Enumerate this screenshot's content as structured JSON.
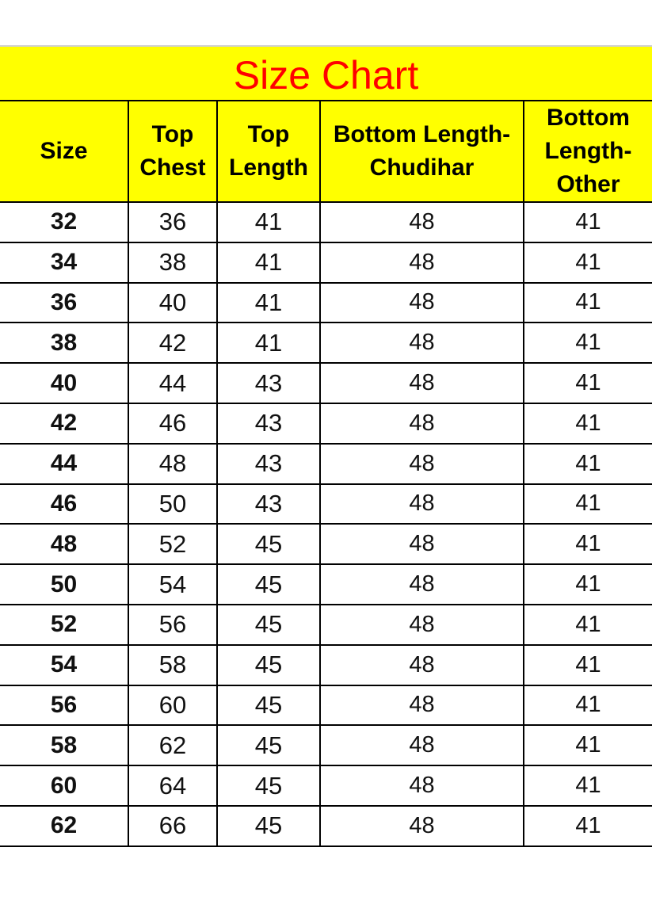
{
  "title": "Size Chart",
  "colors": {
    "header_bg": "#ffff00",
    "title_text": "#ff0000"
  },
  "columns": [
    "Size",
    "Top Chest",
    "Top Length",
    "Bottom Length-Chudihar",
    "Bottom Length-Other"
  ],
  "rows": [
    [
      "32",
      "36",
      "41",
      "48",
      "41"
    ],
    [
      "34",
      "38",
      "41",
      "48",
      "41"
    ],
    [
      "36",
      "40",
      "41",
      "48",
      "41"
    ],
    [
      "38",
      "42",
      "41",
      "48",
      "41"
    ],
    [
      "40",
      "44",
      "43",
      "48",
      "41"
    ],
    [
      "42",
      "46",
      "43",
      "48",
      "41"
    ],
    [
      "44",
      "48",
      "43",
      "48",
      "41"
    ],
    [
      "46",
      "50",
      "43",
      "48",
      "41"
    ],
    [
      "48",
      "52",
      "45",
      "48",
      "41"
    ],
    [
      "50",
      "54",
      "45",
      "48",
      "41"
    ],
    [
      "52",
      "56",
      "45",
      "48",
      "41"
    ],
    [
      "54",
      "58",
      "45",
      "48",
      "41"
    ],
    [
      "56",
      "60",
      "45",
      "48",
      "41"
    ],
    [
      "58",
      "62",
      "45",
      "48",
      "41"
    ],
    [
      "60",
      "64",
      "45",
      "48",
      "41"
    ],
    [
      "62",
      "66",
      "45",
      "48",
      "41"
    ]
  ]
}
